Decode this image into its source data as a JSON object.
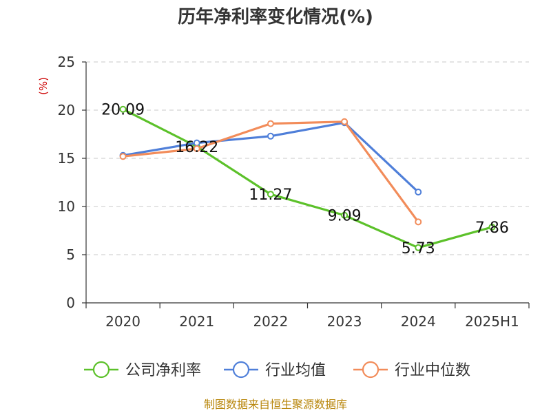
{
  "chart_data": {
    "type": "line",
    "title": "历年净利率变化情况(%)",
    "y_unit": "(%)",
    "categories": [
      "2020",
      "2021",
      "2022",
      "2023",
      "2024",
      "2025H1"
    ],
    "ylim": [
      0,
      25
    ],
    "yticks": [
      "0",
      "5",
      "10",
      "15",
      "20",
      "25"
    ],
    "grid": true,
    "legend_position": "bottom",
    "series": [
      {
        "name": "公司净利率",
        "color": "#5cc12a",
        "values": [
          20.09,
          16.22,
          11.27,
          9.09,
          5.73,
          7.86
        ],
        "labels": [
          "20.09",
          "16.22",
          "11.27",
          "9.09",
          "5.73",
          "7.86"
        ]
      },
      {
        "name": "行业均值",
        "color": "#4f7fd9",
        "values": [
          15.3,
          16.6,
          17.3,
          18.7,
          11.5,
          null
        ]
      },
      {
        "name": "行业中位数",
        "color": "#f28c5a",
        "values": [
          15.2,
          16.0,
          18.6,
          18.8,
          8.4,
          null
        ]
      }
    ]
  },
  "source": "制图数据来自恒生聚源数据库"
}
